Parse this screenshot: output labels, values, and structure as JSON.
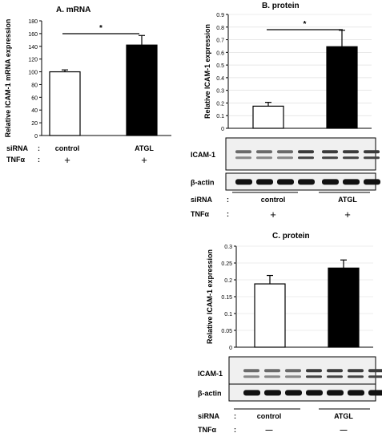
{
  "chart_data": [
    {
      "type": "bar",
      "title": "A.  mRNA",
      "ylabel": "Relative  ICAM-1 mRNA expression",
      "ylim": [
        0,
        180
      ],
      "yticks": [
        "0",
        "20",
        "40",
        "60",
        "80",
        "100",
        "120",
        "140",
        "160",
        "180"
      ],
      "categories": [
        "control",
        "ATGL"
      ],
      "values": [
        100,
        142
      ],
      "errors": [
        3,
        15
      ],
      "bar_colors": [
        "#ffffff",
        "#000000"
      ],
      "significance": "*",
      "rows": [
        {
          "label": "siRNA",
          "sep": ":",
          "values": [
            "control",
            "ATGL"
          ]
        },
        {
          "label": "TNFα",
          "sep": ":",
          "values": [
            "+",
            "+"
          ]
        }
      ]
    },
    {
      "type": "bar",
      "title": "B.  protein",
      "ylabel": "Relative  ICAM-1 expression",
      "ylim": [
        0,
        0.9
      ],
      "yticks": [
        "0",
        "0.1",
        "0.2",
        "0.3",
        "0.4",
        "0.5",
        "0.6",
        "0.7",
        "0.8",
        "0.9"
      ],
      "categories": [
        "control",
        "ATGL"
      ],
      "values": [
        0.175,
        0.645
      ],
      "errors": [
        0.03,
        0.13
      ],
      "bar_colors": [
        "#ffffff",
        "#000000"
      ],
      "significance": "*",
      "blots": [
        "ICAM-1",
        "β-actin"
      ],
      "rows": [
        {
          "label": "siRNA",
          "sep": ":",
          "values": [
            "control",
            "ATGL"
          ]
        },
        {
          "label": "TNFα",
          "sep": ":",
          "values": [
            "+",
            "+"
          ]
        }
      ]
    },
    {
      "type": "bar",
      "title": "C.  protein",
      "ylabel": "Relative  ICAM-1 expression",
      "ylim": [
        0,
        0.3
      ],
      "yticks": [
        "0",
        "0.05",
        "0.1",
        "0.15",
        "0.2",
        "0.25",
        "0.3"
      ],
      "categories": [
        "control",
        "ATGL"
      ],
      "values": [
        0.188,
        0.235
      ],
      "errors": [
        0.025,
        0.024
      ],
      "bar_colors": [
        "#ffffff",
        "#000000"
      ],
      "significance": "",
      "blots": [
        "ICAM-1",
        "β-actin"
      ],
      "rows": [
        {
          "label": "siRNA",
          "sep": ":",
          "values": [
            "control",
            "ATGL"
          ]
        },
        {
          "label": "TNFα",
          "sep": ":",
          "values": [
            "—",
            "—"
          ]
        }
      ]
    }
  ]
}
